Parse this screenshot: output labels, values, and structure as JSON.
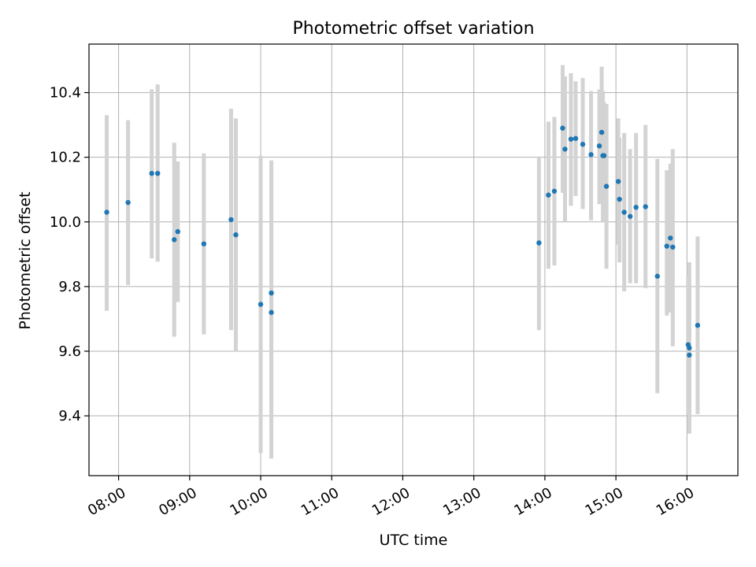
{
  "chart_data": {
    "type": "scatter",
    "title": "Photometric offset variation",
    "xlabel": "UTC time",
    "ylabel": "Photometric offset",
    "grid": true,
    "xlim": [
      "07:35",
      "16:43"
    ],
    "ylim": [
      9.215,
      10.55
    ],
    "x_ticks": [
      "08:00",
      "09:00",
      "10:00",
      "11:00",
      "12:00",
      "13:00",
      "14:00",
      "15:00",
      "16:00"
    ],
    "y_ticks": [
      "9.4",
      "9.6",
      "9.8",
      "10.0",
      "10.2",
      "10.4"
    ],
    "colors": {
      "point": "#1f77b4",
      "errorbar": "#d3d3d3",
      "grid": "#b0b0b0"
    },
    "series": [
      {
        "points": [
          {
            "x": "07:50",
            "y": 10.03,
            "ylo": 9.725,
            "yhi": 10.33
          },
          {
            "x": "08:08",
            "y": 10.06,
            "ylo": 9.805,
            "yhi": 10.315
          },
          {
            "x": "08:28",
            "y": 10.15,
            "ylo": 9.887,
            "yhi": 10.41
          },
          {
            "x": "08:33",
            "y": 10.15,
            "ylo": 9.877,
            "yhi": 10.425
          },
          {
            "x": "08:47",
            "y": 9.945,
            "ylo": 9.645,
            "yhi": 10.245
          },
          {
            "x": "08:50",
            "y": 9.97,
            "ylo": 9.752,
            "yhi": 10.187
          },
          {
            "x": "09:12",
            "y": 9.932,
            "ylo": 9.652,
            "yhi": 10.212
          },
          {
            "x": "09:35",
            "y": 10.007,
            "ylo": 9.665,
            "yhi": 10.35
          },
          {
            "x": "09:39",
            "y": 9.96,
            "ylo": 9.6,
            "yhi": 10.32
          },
          {
            "x": "10:00",
            "y": 9.745,
            "ylo": 9.285,
            "yhi": 10.205
          },
          {
            "x": "10:09",
            "y": 9.78,
            "ylo": 9.37,
            "yhi": 10.19
          },
          {
            "x": "10:09",
            "y": 9.72,
            "ylo": 9.268,
            "yhi": 10.172
          },
          {
            "x": "13:55",
            "y": 9.935,
            "ylo": 9.665,
            "yhi": 10.2
          },
          {
            "x": "14:03",
            "y": 10.083,
            "ylo": 9.855,
            "yhi": 10.31
          },
          {
            "x": "14:08",
            "y": 10.095,
            "ylo": 9.865,
            "yhi": 10.325
          },
          {
            "x": "14:15",
            "y": 10.29,
            "ylo": 10.09,
            "yhi": 10.485
          },
          {
            "x": "14:17",
            "y": 10.225,
            "ylo": 10.0,
            "yhi": 10.45
          },
          {
            "x": "14:22",
            "y": 10.256,
            "ylo": 10.05,
            "yhi": 10.46
          },
          {
            "x": "14:26",
            "y": 10.258,
            "ylo": 10.08,
            "yhi": 10.435
          },
          {
            "x": "14:32",
            "y": 10.24,
            "ylo": 10.04,
            "yhi": 10.445
          },
          {
            "x": "14:39",
            "y": 10.208,
            "ylo": 10.005,
            "yhi": 10.405
          },
          {
            "x": "14:46",
            "y": 10.235,
            "ylo": 10.055,
            "yhi": 10.41
          },
          {
            "x": "14:48",
            "y": 10.277,
            "ylo": 10.06,
            "yhi": 10.48
          },
          {
            "x": "14:49",
            "y": 10.205,
            "ylo": 10.0,
            "yhi": 10.405
          },
          {
            "x": "14:50",
            "y": 10.205,
            "ylo": 10.03,
            "yhi": 10.37
          },
          {
            "x": "14:52",
            "y": 10.11,
            "ylo": 9.855,
            "yhi": 10.365
          },
          {
            "x": "15:02",
            "y": 10.125,
            "ylo": 9.93,
            "yhi": 10.32
          },
          {
            "x": "15:03",
            "y": 10.07,
            "ylo": 9.875,
            "yhi": 10.26
          },
          {
            "x": "15:07",
            "y": 10.03,
            "ylo": 9.785,
            "yhi": 10.275
          },
          {
            "x": "15:12",
            "y": 10.017,
            "ylo": 9.81,
            "yhi": 10.225
          },
          {
            "x": "15:17",
            "y": 10.045,
            "ylo": 9.81,
            "yhi": 10.275
          },
          {
            "x": "15:25",
            "y": 10.047,
            "ylo": 9.795,
            "yhi": 10.3
          },
          {
            "x": "15:35",
            "y": 9.832,
            "ylo": 9.47,
            "yhi": 10.195
          },
          {
            "x": "15:43",
            "y": 9.925,
            "ylo": 9.71,
            "yhi": 10.16
          },
          {
            "x": "15:46",
            "y": 9.95,
            "ylo": 9.72,
            "yhi": 10.18
          },
          {
            "x": "15:48",
            "y": 9.922,
            "ylo": 9.615,
            "yhi": 10.225
          },
          {
            "x": "16:01",
            "y": 9.62,
            "ylo": 9.405,
            "yhi": 9.835
          },
          {
            "x": "16:02",
            "y": 9.61,
            "ylo": 9.345,
            "yhi": 9.875
          },
          {
            "x": "16:02",
            "y": 9.588,
            "ylo": 9.35,
            "yhi": 9.8
          },
          {
            "x": "16:09",
            "y": 9.68,
            "ylo": 9.405,
            "yhi": 9.955
          }
        ]
      }
    ]
  }
}
